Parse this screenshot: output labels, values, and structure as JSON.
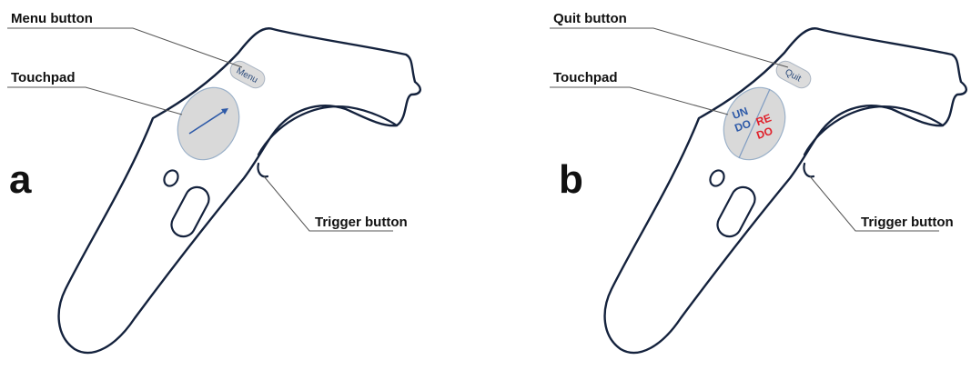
{
  "panels": [
    {
      "letter": "a",
      "top_callout": "Menu button",
      "pad_callout": "Touchpad",
      "trigger_callout": "Trigger button",
      "button_label": "Menu",
      "pad_mode": "arrow"
    },
    {
      "letter": "b",
      "top_callout": "Quit button",
      "pad_callout": "Touchpad",
      "trigger_callout": "Trigger button",
      "button_label": "Quit",
      "pad_mode": "undo-redo",
      "undo_lines": [
        "UN",
        "DO"
      ],
      "redo_lines": [
        "RE",
        "DO"
      ],
      "undo_color": "#2e5aa8",
      "redo_color": "#e0202a"
    }
  ]
}
